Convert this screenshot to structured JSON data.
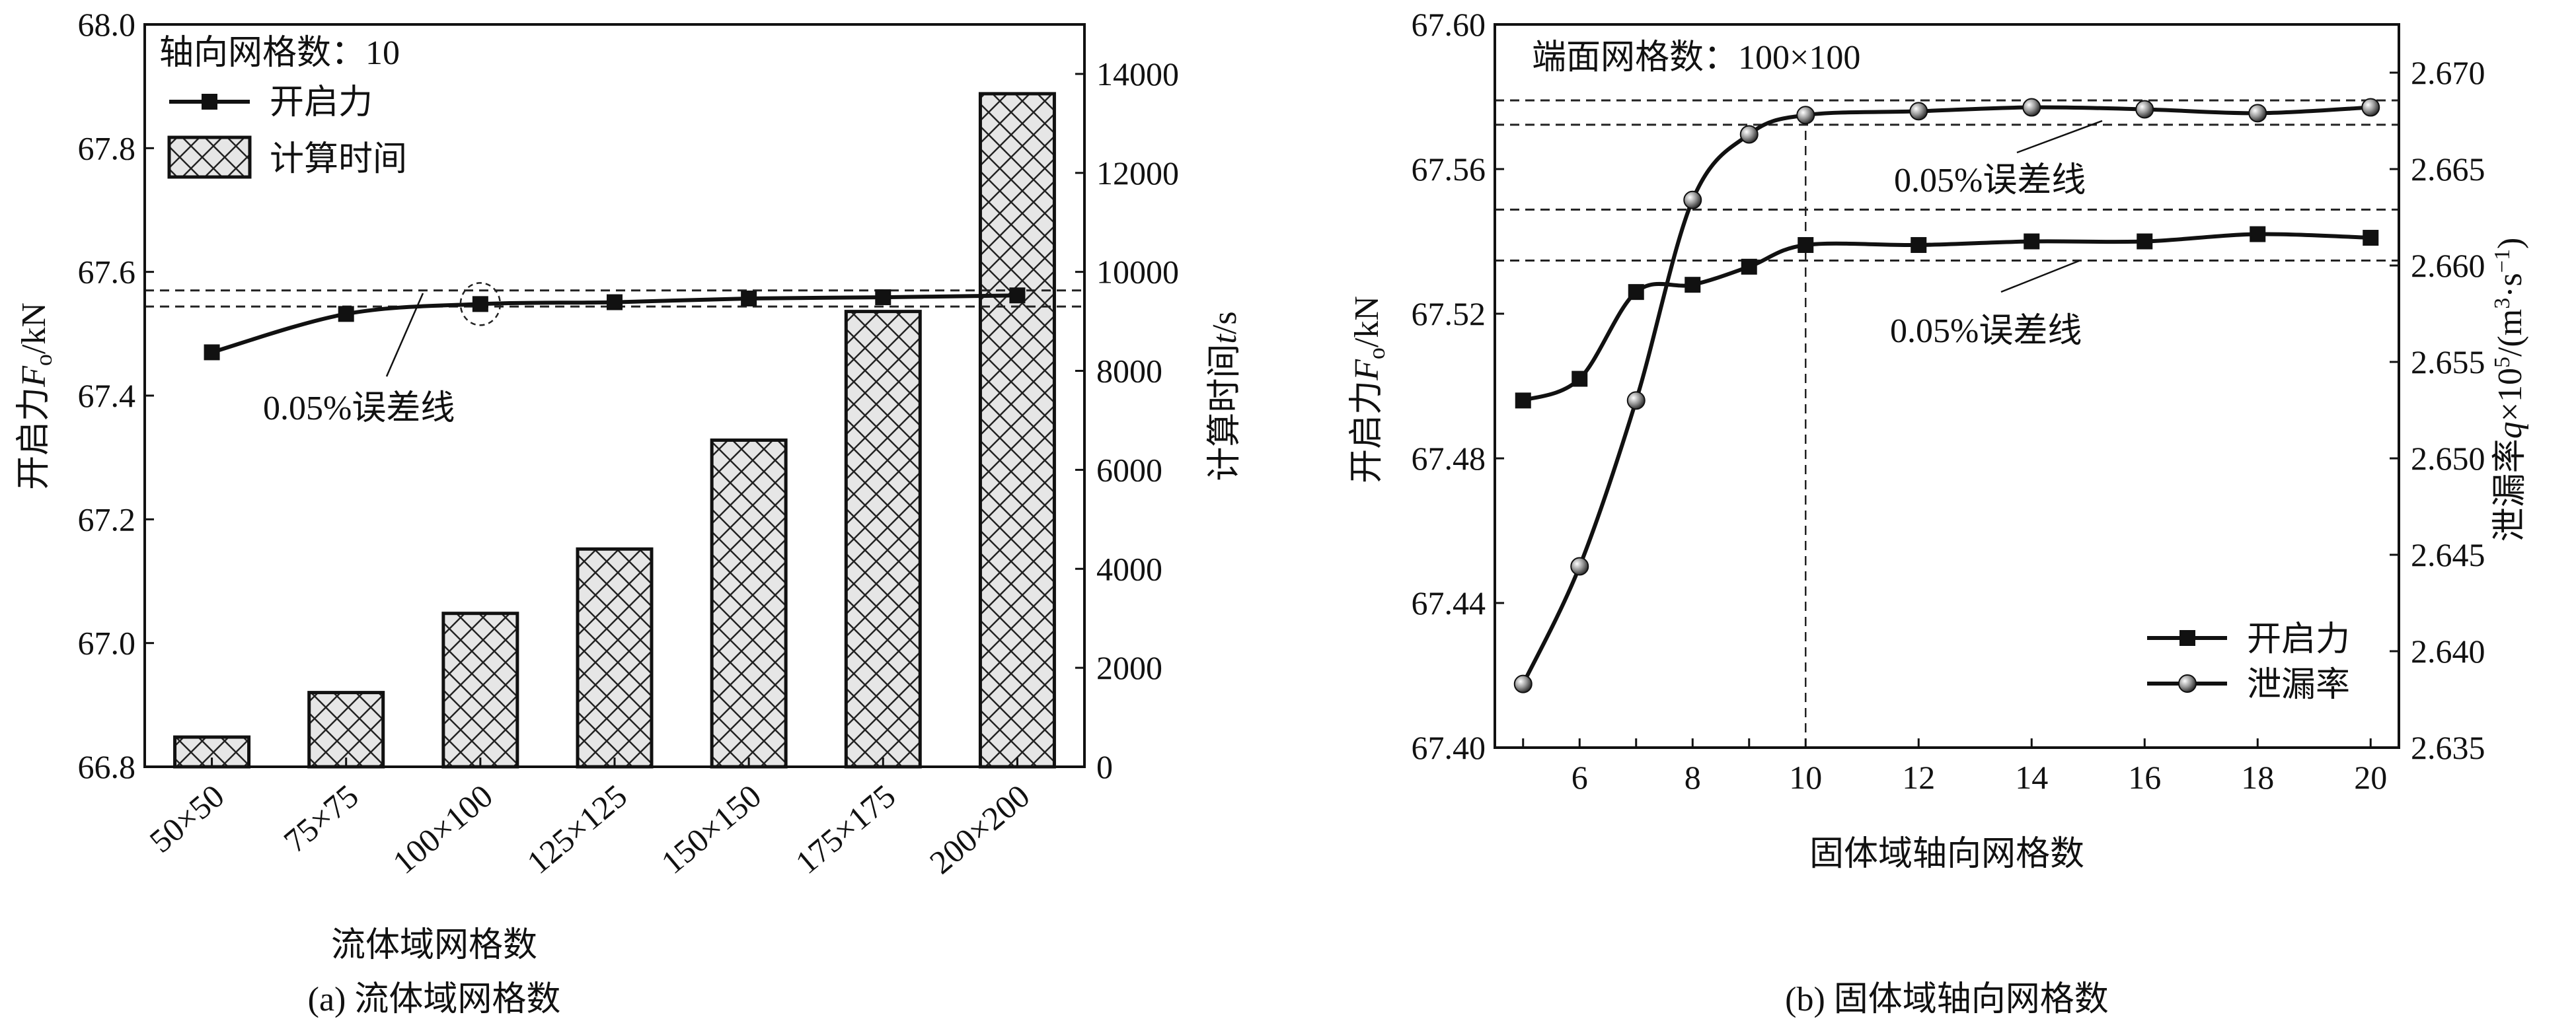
{
  "chart_data": [
    {
      "type": "bar+line",
      "panel_caption": "(a) 流体域网格数",
      "annotation_title": "轴向网格数：10",
      "xlabel": "流体域网格数",
      "ylabel_parts": [
        "开启力",
        "F",
        "o",
        "/kN"
      ],
      "y2label_parts": [
        "计算时间",
        "t",
        "/s"
      ],
      "categories": [
        "50×50",
        "75×75",
        "100×100",
        "125×125",
        "150×150",
        "175×175",
        "200×200"
      ],
      "ylim": [
        66.8,
        68.0
      ],
      "yticks": [
        "66.8",
        "67.0",
        "67.2",
        "67.4",
        "67.6",
        "67.8",
        "68.0"
      ],
      "y2lim": [
        0,
        15000
      ],
      "y2ticks": [
        "0",
        "2000",
        "4000",
        "6000",
        "8000",
        "10000",
        "12000",
        "14000"
      ],
      "series": [
        {
          "name": "开启力",
          "kind": "line",
          "marker": "square",
          "axis": "left",
          "values": [
            67.47,
            67.532,
            67.548,
            67.551,
            67.557,
            67.559,
            67.562
          ]
        },
        {
          "name": "计算时间",
          "kind": "bar",
          "pattern": "crosshatch",
          "axis": "right",
          "values": [
            600,
            1500,
            3100,
            4400,
            6600,
            9200,
            13600
          ]
        }
      ],
      "reference_lines": [
        67.57,
        67.544
      ],
      "reference_label": "0.05%误差线",
      "highlighted_category": "100×100",
      "legend": "top-left"
    },
    {
      "type": "line",
      "panel_caption": "(b) 固体域轴向网格数",
      "annotation_title": "端面网格数：100×100",
      "xlabel": "固体域轴向网格数",
      "ylabel_parts": [
        "开启力",
        "F",
        "o",
        "/kN"
      ],
      "y2label_parts": [
        "泄漏率",
        "q",
        "×10",
        "5",
        "/(m",
        "3",
        "·s",
        "−1",
        ")"
      ],
      "x": [
        5,
        6,
        7,
        8,
        9,
        10,
        12,
        14,
        16,
        18,
        20
      ],
      "xlim": [
        4.5,
        20.5
      ],
      "xticks": [
        "6",
        "8",
        "10",
        "12",
        "14",
        "16",
        "18",
        "20"
      ],
      "ylim": [
        67.4,
        67.6
      ],
      "yticks": [
        "67.40",
        "67.44",
        "67.48",
        "67.52",
        "67.56",
        "67.60"
      ],
      "y2lim": [
        2.635,
        2.6725
      ],
      "y2ticks": [
        "2.635",
        "2.640",
        "2.645",
        "2.650",
        "2.655",
        "2.660",
        "2.665",
        "2.670"
      ],
      "series": [
        {
          "name": "开启力",
          "marker": "square",
          "axis": "left",
          "values": [
            67.496,
            67.502,
            67.526,
            67.528,
            67.533,
            67.539,
            67.539,
            67.54,
            67.54,
            67.542,
            67.541
          ]
        },
        {
          "name": "泄漏率",
          "marker": "sphere",
          "axis": "right",
          "values": [
            2.6383,
            2.6444,
            2.653,
            2.6634,
            2.6668,
            2.6678,
            2.668,
            2.6682,
            2.6681,
            2.6679,
            2.6682
          ]
        }
      ],
      "reference_lines_left": [
        67.5488,
        67.5347
      ],
      "reference_lines_right": [
        2.66856,
        2.6673
      ],
      "reference_label": "0.05%误差线",
      "vertical_marker_x": 10,
      "legend": "bottom-right"
    }
  ]
}
